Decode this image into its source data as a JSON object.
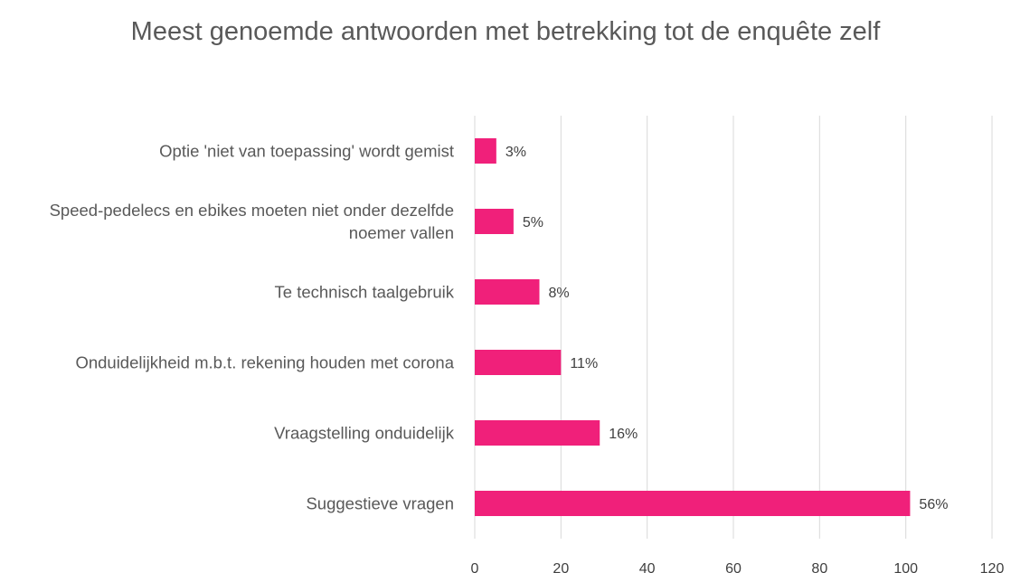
{
  "chart_data": {
    "type": "bar",
    "orientation": "horizontal",
    "title": "Meest genoemde antwoorden met betrekking tot  de enquête zelf",
    "categories": [
      "Optie 'niet van toepassing' wordt gemist",
      "Speed-pedelecs en ebikes moeten niet onder dezelfde noemer vallen",
      "Te technisch taalgebruik",
      "Onduidelijkheid m.b.t. rekening houden met corona",
      "Vraagstelling onduidelijk",
      "Suggestieve vragen"
    ],
    "values": [
      5,
      9,
      15,
      20,
      29,
      101
    ],
    "value_labels": [
      "3%",
      "5%",
      "8%",
      "11%",
      "16%",
      "56%"
    ],
    "color": "#f0207a",
    "xlim": [
      0,
      120
    ],
    "xticks": [
      0,
      20,
      40,
      60,
      80,
      100,
      120
    ],
    "grid": true
  }
}
